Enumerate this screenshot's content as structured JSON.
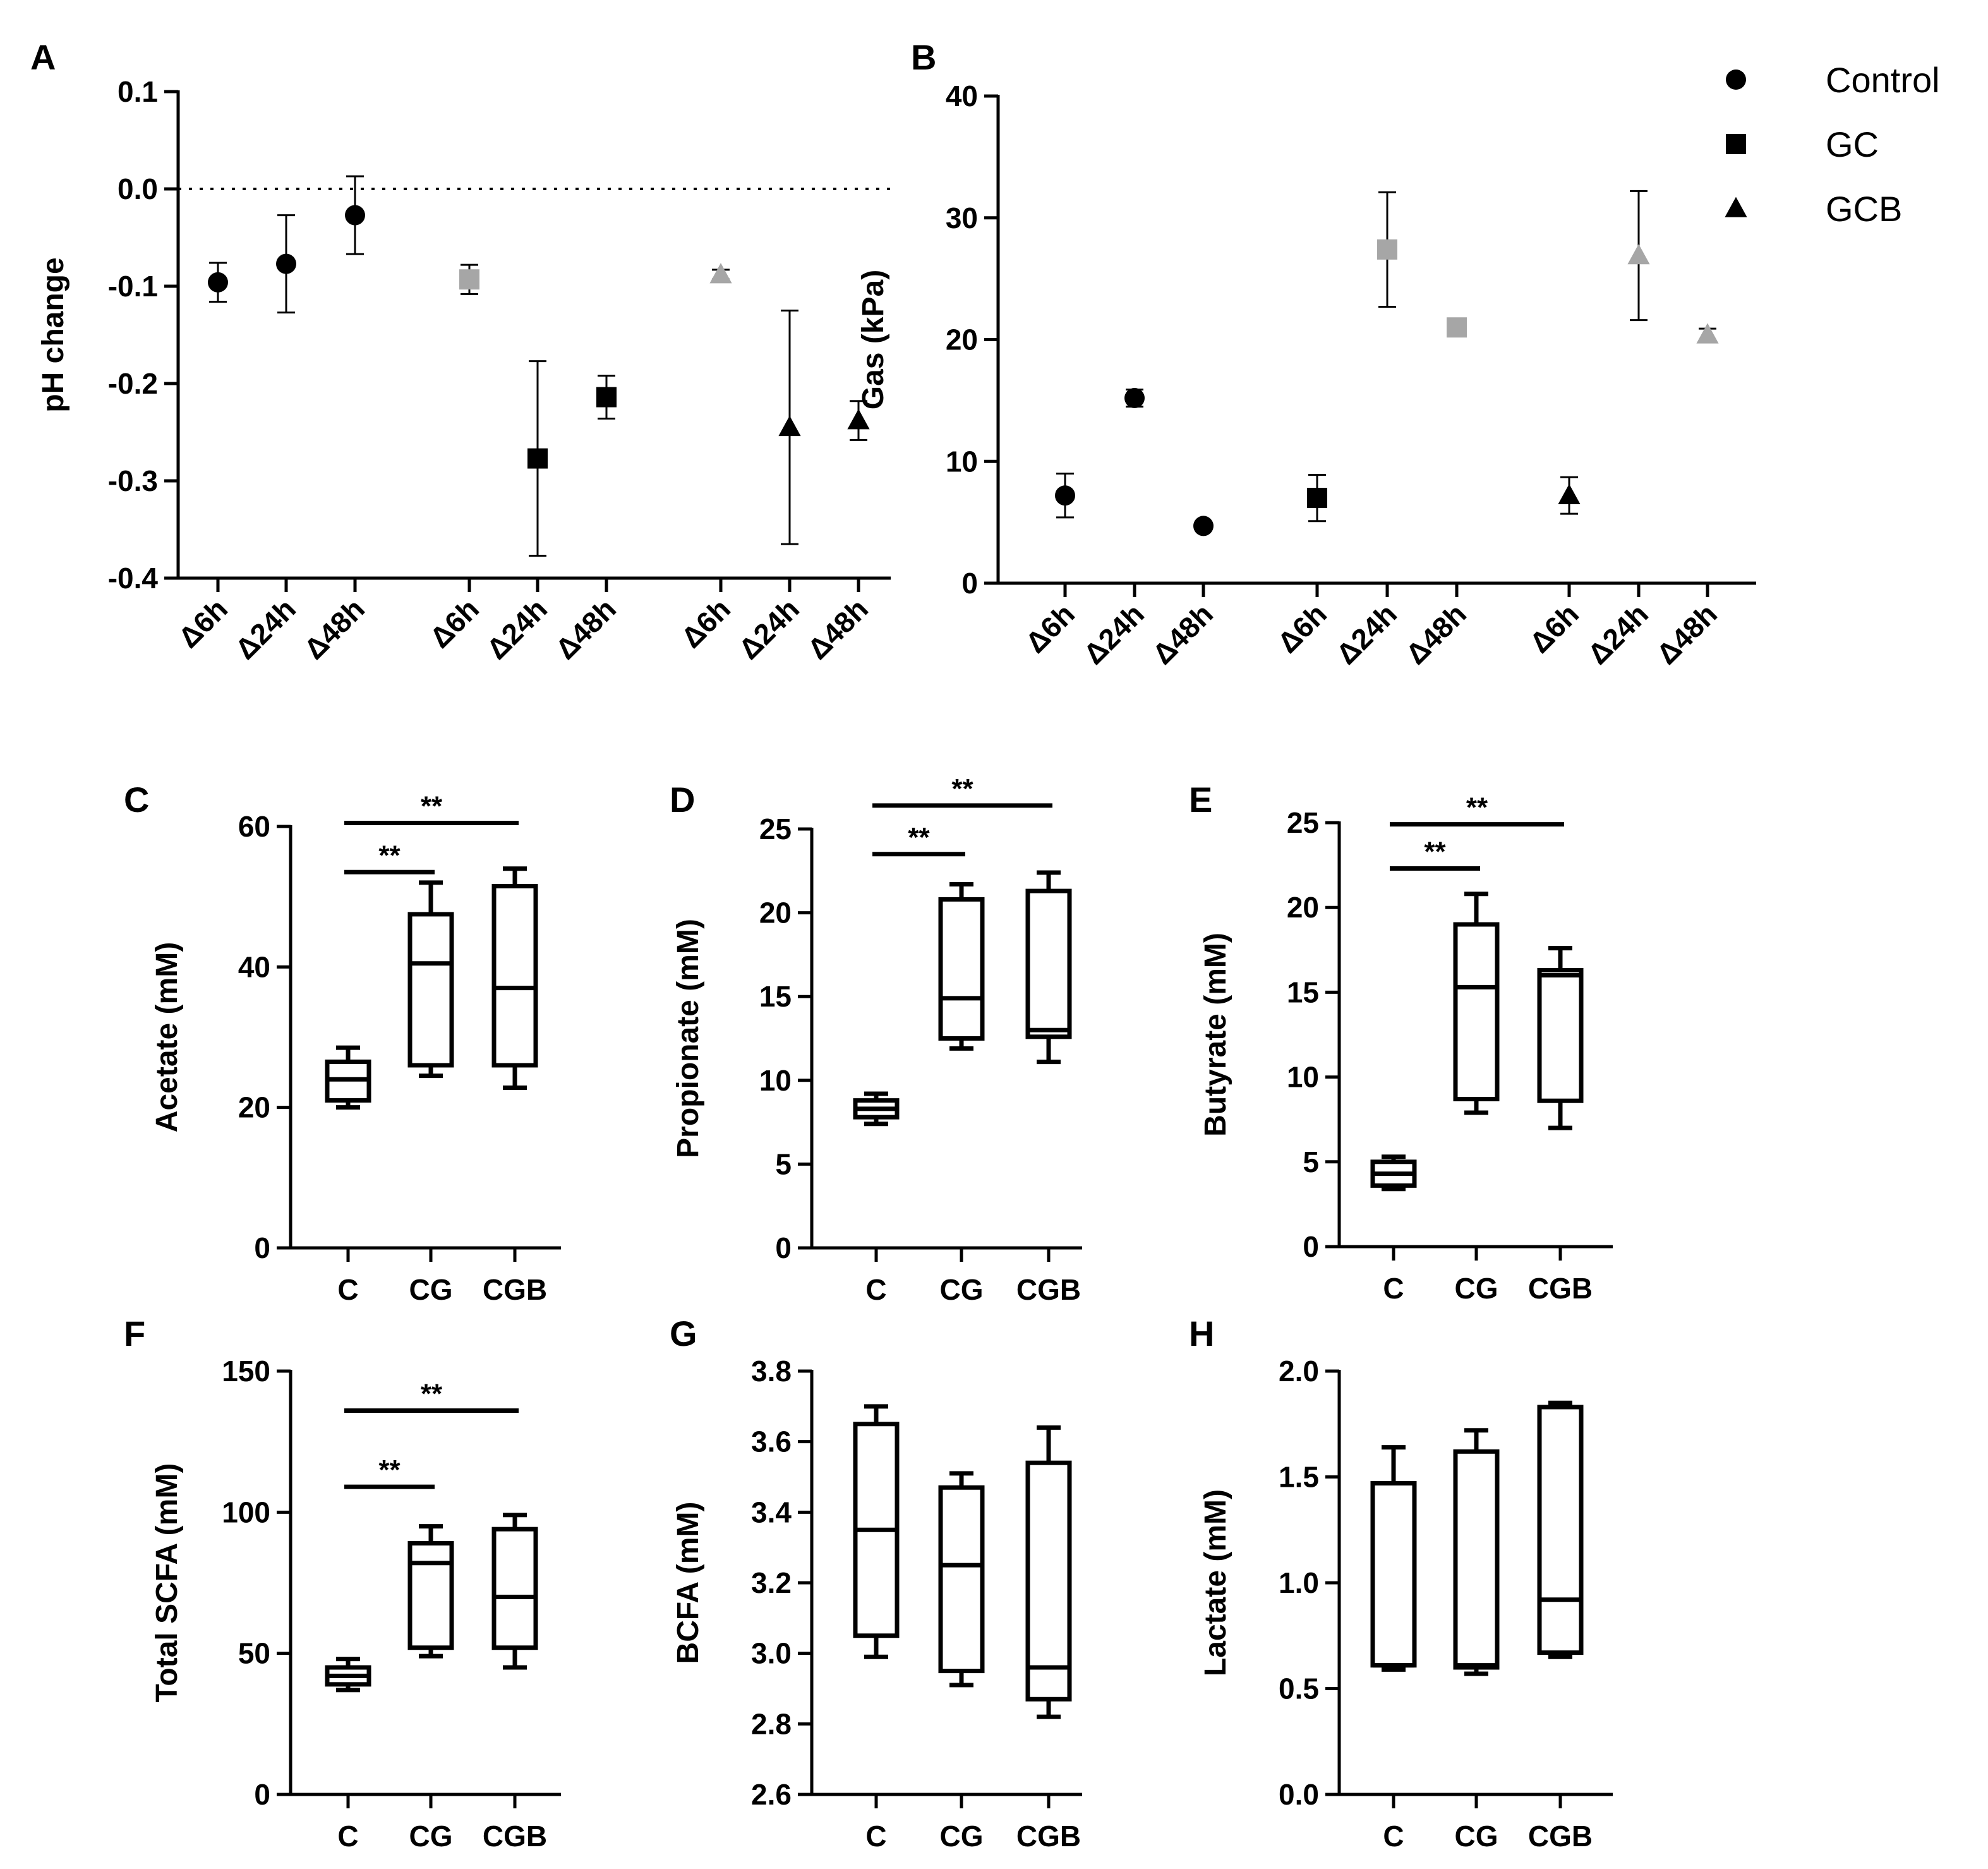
{
  "chart_data": [
    {
      "panel": "A",
      "type": "scatter",
      "ylabel": "pH change",
      "ylim": [
        -0.4,
        0.1
      ],
      "yticks": [
        "0.1",
        "0.0",
        "-0.1",
        "-0.2",
        "-0.3",
        "-0.4"
      ],
      "reference_line": 0.0,
      "categories": [
        "Δ6h",
        "Δ24h",
        "Δ48h",
        "Δ6h",
        "Δ24h",
        "Δ48h",
        "Δ6h",
        "Δ24h",
        "Δ48h"
      ],
      "series": [
        {
          "name": "Control",
          "marker": "circle",
          "points": [
            {
              "x": 0,
              "y": -0.096,
              "err": 0.02,
              "color": "#000000"
            },
            {
              "x": 1,
              "y": -0.077,
              "err": 0.05,
              "color": "#000000"
            },
            {
              "x": 2,
              "y": -0.027,
              "err": 0.04,
              "color": "#000000"
            }
          ]
        },
        {
          "name": "GC",
          "marker": "square",
          "points": [
            {
              "x": 3,
              "y": -0.093,
              "err": 0.015,
              "color": "#a6a6a6"
            },
            {
              "x": 4,
              "y": -0.277,
              "err": 0.1,
              "color": "#000000"
            },
            {
              "x": 5,
              "y": -0.214,
              "err": 0.022,
              "color": "#000000"
            }
          ]
        },
        {
          "name": "GCB",
          "marker": "triangle",
          "points": [
            {
              "x": 6,
              "y": -0.088,
              "err": 0.005,
              "color": "#a6a6a6"
            },
            {
              "x": 7,
              "y": -0.245,
              "err": 0.12,
              "color": "#000000"
            },
            {
              "x": 8,
              "y": -0.238,
              "err": 0.02,
              "color": "#000000"
            }
          ]
        }
      ]
    },
    {
      "panel": "B",
      "type": "scatter",
      "ylabel": "Gas (kPa)",
      "ylim": [
        0,
        40
      ],
      "yticks": [
        "40",
        "30",
        "20",
        "10",
        "0"
      ],
      "categories": [
        "Δ6h",
        "Δ24h",
        "Δ48h",
        "Δ6h",
        "Δ24h",
        "Δ48h",
        "Δ6h",
        "Δ24h",
        "Δ48h"
      ],
      "series": [
        {
          "name": "Control",
          "marker": "circle",
          "points": [
            {
              "x": 0,
              "y": 7.2,
              "err": 1.8,
              "color": "#000000"
            },
            {
              "x": 1,
              "y": 15.2,
              "err": 0.7,
              "color": "#000000"
            },
            {
              "x": 2,
              "y": 4.7,
              "err": 0,
              "color": "#000000"
            }
          ]
        },
        {
          "name": "GC",
          "marker": "square",
          "points": [
            {
              "x": 3,
              "y": 7.0,
              "err": 1.9,
              "color": "#000000"
            },
            {
              "x": 4,
              "y": 27.4,
              "err": 4.7,
              "color": "#a6a6a6"
            },
            {
              "x": 5,
              "y": 21.0,
              "err": 0,
              "color": "#a6a6a6"
            }
          ]
        },
        {
          "name": "GCB",
          "marker": "triangle",
          "points": [
            {
              "x": 6,
              "y": 7.2,
              "err": 1.5,
              "color": "#000000"
            },
            {
              "x": 7,
              "y": 26.9,
              "err": 5.3,
              "color": "#a6a6a6"
            },
            {
              "x": 8,
              "y": 20.4,
              "err": 0.5,
              "color": "#a6a6a6"
            }
          ]
        }
      ]
    },
    {
      "panel": "C",
      "type": "box",
      "ylabel": "Acetate (mM)",
      "ylim": [
        0,
        60
      ],
      "yticks": [
        "0",
        "20",
        "40",
        "60"
      ],
      "categories": [
        "C",
        "CG",
        "CGB"
      ],
      "boxes": [
        {
          "min": 20,
          "q1": 21,
          "median": 24,
          "q3": 26.5,
          "max": 28.5
        },
        {
          "min": 24.5,
          "q1": 26,
          "median": 40.5,
          "q3": 47.5,
          "max": 52
        },
        {
          "min": 22.8,
          "q1": 26,
          "median": 37,
          "q3": 51.5,
          "max": 54
        }
      ],
      "significance": [
        {
          "from": 0,
          "to": 1,
          "label": "**",
          "y": 53.5
        },
        {
          "from": 0,
          "to": 2,
          "label": "**",
          "y": 60.5
        }
      ]
    },
    {
      "panel": "D",
      "type": "box",
      "ylabel": "Propionate (mM)",
      "ylim": [
        0,
        25
      ],
      "yticks": [
        "0",
        "5",
        "10",
        "15",
        "20",
        "25"
      ],
      "categories": [
        "C",
        "CG",
        "CGB"
      ],
      "boxes": [
        {
          "min": 7.4,
          "q1": 7.8,
          "median": 8.3,
          "q3": 8.8,
          "max": 9.2
        },
        {
          "min": 11.9,
          "q1": 12.5,
          "median": 14.9,
          "q3": 20.8,
          "max": 21.7
        },
        {
          "min": 11.1,
          "q1": 12.6,
          "median": 13.0,
          "q3": 21.3,
          "max": 22.4
        }
      ],
      "significance": [
        {
          "from": 0,
          "to": 1,
          "label": "**",
          "y": 23.5
        },
        {
          "from": 0,
          "to": 2,
          "label": "**",
          "y": 26.4
        }
      ]
    },
    {
      "panel": "E",
      "type": "box",
      "ylabel": "Butyrate (mM)",
      "ylim": [
        0,
        25
      ],
      "yticks": [
        "0",
        "5",
        "10",
        "15",
        "20",
        "25"
      ],
      "categories": [
        "C",
        "CG",
        "CGB"
      ],
      "boxes": [
        {
          "min": 3.4,
          "q1": 3.6,
          "median": 4.3,
          "q3": 5.0,
          "max": 5.3
        },
        {
          "min": 7.9,
          "q1": 8.7,
          "median": 15.3,
          "q3": 19.0,
          "max": 20.8
        },
        {
          "min": 7.0,
          "q1": 8.6,
          "median": 16.0,
          "q3": 16.3,
          "max": 17.6
        }
      ],
      "significance": [
        {
          "from": 0,
          "to": 1,
          "label": "**",
          "y": 22.3
        },
        {
          "from": 0,
          "to": 2,
          "label": "**",
          "y": 24.9
        }
      ]
    },
    {
      "panel": "F",
      "type": "box",
      "ylabel": "Total SCFA (mM)",
      "ylim": [
        0,
        150
      ],
      "yticks": [
        "0",
        "50",
        "100",
        "150"
      ],
      "categories": [
        "C",
        "CG",
        "CGB"
      ],
      "boxes": [
        {
          "min": 37,
          "q1": 39,
          "median": 42,
          "q3": 45,
          "max": 48
        },
        {
          "min": 49,
          "q1": 52,
          "median": 82,
          "q3": 89,
          "max": 95
        },
        {
          "min": 45,
          "q1": 52,
          "median": 70,
          "q3": 94,
          "max": 99
        }
      ],
      "significance": [
        {
          "from": 0,
          "to": 1,
          "label": "**",
          "y": 109
        },
        {
          "from": 0,
          "to": 2,
          "label": "**",
          "y": 136
        }
      ]
    },
    {
      "panel": "G",
      "type": "box",
      "ylabel": "BCFA (mM)",
      "ylim": [
        2.6,
        3.8
      ],
      "yticks": [
        "2.6",
        "2.8",
        "3.0",
        "3.2",
        "3.4",
        "3.6",
        "3.8"
      ],
      "categories": [
        "C",
        "CG",
        "CGB"
      ],
      "boxes": [
        {
          "min": 2.99,
          "q1": 3.05,
          "median": 3.35,
          "q3": 3.65,
          "max": 3.7
        },
        {
          "min": 2.91,
          "q1": 2.95,
          "median": 3.25,
          "q3": 3.47,
          "max": 3.51
        },
        {
          "min": 2.82,
          "q1": 2.87,
          "median": 2.96,
          "q3": 3.54,
          "max": 3.64
        }
      ],
      "significance": []
    },
    {
      "panel": "H",
      "type": "box",
      "ylabel": "Lactate (mM)",
      "ylim": [
        0,
        2
      ],
      "yticks": [
        "0.0",
        "0.5",
        "1.0",
        "1.5",
        "2.0"
      ],
      "categories": [
        "C",
        "CG",
        "CGB"
      ],
      "boxes": [
        {
          "min": 0.59,
          "q1": 0.61,
          "median": 0.61,
          "q3": 1.47,
          "max": 1.64
        },
        {
          "min": 0.57,
          "q1": 0.6,
          "median": 0.61,
          "q3": 1.62,
          "max": 1.72
        },
        {
          "min": 0.65,
          "q1": 0.67,
          "median": 0.92,
          "q3": 1.83,
          "max": 1.85
        }
      ],
      "significance": []
    }
  ],
  "legend": [
    {
      "label": "Control",
      "marker": "circle"
    },
    {
      "label": "GC",
      "marker": "square"
    },
    {
      "label": "GCB",
      "marker": "triangle"
    }
  ]
}
